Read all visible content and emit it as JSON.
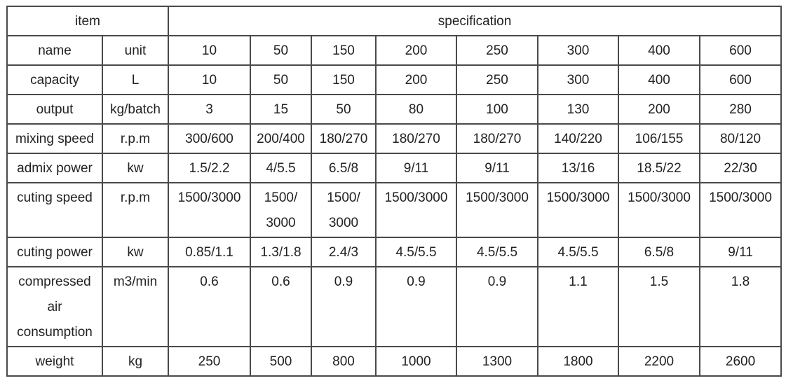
{
  "header": [
    "item",
    "specification"
  ],
  "rows": [
    [
      "name",
      "unit",
      "10",
      "50",
      "150",
      "200",
      "250",
      "300",
      "400",
      "600"
    ],
    [
      "capacity",
      "L",
      "10",
      "50",
      "150",
      "200",
      "250",
      "300",
      "400",
      "600"
    ],
    [
      "output",
      "kg/batch",
      "3",
      "15",
      "50",
      "80",
      "100",
      "130",
      "200",
      "280"
    ],
    [
      "mixing speed",
      "r.p.m",
      "300/600",
      "200/400",
      "180/270",
      "180/270",
      "180/270",
      "140/220",
      "106/155",
      "80/120"
    ],
    [
      "admix power",
      "kw",
      "1.5/2.2",
      "4/5.5",
      "6.5/8",
      "9/11",
      "9/11",
      "13/16",
      "18.5/22",
      "22/30"
    ],
    [
      "cuting speed",
      "r.p.m",
      "1500/3000",
      "1500/\n3000",
      "1500/\n3000",
      "1500/3000",
      "1500/3000",
      "1500/3000",
      "1500/3000",
      "1500/3000"
    ],
    [
      "cuting power",
      "kw",
      "0.85/1.1",
      "1.3/1.8",
      "2.4/3",
      "4.5/5.5",
      "4.5/5.5",
      "4.5/5.5",
      "6.5/8",
      "9/11"
    ],
    [
      "compressed\nair\nconsumption",
      "m3/min",
      "0.6",
      "0.6",
      "0.9",
      "0.9",
      "0.9",
      "1.1",
      "1.5",
      "1.8"
    ],
    [
      "weight",
      "kg",
      "250",
      "500",
      "800",
      "1000",
      "1300",
      "1800",
      "2200",
      "2600"
    ]
  ]
}
